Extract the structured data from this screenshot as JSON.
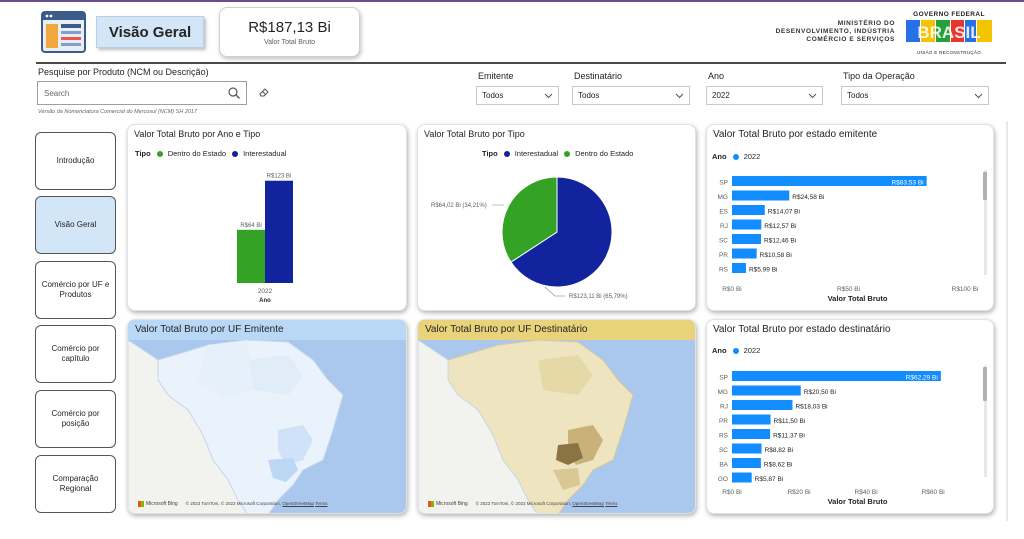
{
  "header": {
    "title": "Visão Geral",
    "kpi_value": "R$187,13 Bi",
    "kpi_label": "Valor Total Bruto",
    "ministry_line1": "MINISTÉRIO DO",
    "ministry_line2": "DESENVOLVIMENTO, INDÚSTRIA",
    "ministry_line3": "COMÉRCIO E SERVIÇOS",
    "gov_top": "GOVERNO FEDERAL",
    "gov_brand": "BRASIL",
    "gov_bottom": "UNIÃO E RECONSTRUÇÃO"
  },
  "search": {
    "label": "Pesquise por Produto (NCM ou Descrição)",
    "placeholder": "Search",
    "note": "Versão da Nomenclatura Comercial do Mercosul (NCM) SH 2017"
  },
  "filters": [
    {
      "label": "Emitente",
      "value": "Todos"
    },
    {
      "label": "Destinatário",
      "value": "Todos"
    },
    {
      "label": "Ano",
      "value": "2022"
    },
    {
      "label": "Tipo da Operação",
      "value": "Todos"
    }
  ],
  "nav": [
    {
      "label": "Introdução",
      "active": false
    },
    {
      "label": "Visão Geral",
      "active": true
    },
    {
      "label": "Comércio por UF e Produtos",
      "active": false
    },
    {
      "label": "Comércio por capítulo",
      "active": false
    },
    {
      "label": "Comércio por posição",
      "active": false
    },
    {
      "label": "Comparação Regional",
      "active": false
    }
  ],
  "colors": {
    "green": "#34a224",
    "navy": "#12239e",
    "blue": "#118dff",
    "nav_active": "#d3e6f7",
    "map_emit_header": "#b8d8f5",
    "map_dest_header": "#e8d27a"
  },
  "cards": {
    "bar": {
      "title": "Valor Total Bruto por Ano e Tipo",
      "legend_title": "Tipo",
      "legend": [
        "Dentro do Estado",
        "Interestadual"
      ]
    },
    "pie": {
      "title": "Valor Total Bruto por Tipo",
      "legend_title": "Tipo",
      "legend": [
        "Interestadual",
        "Dentro do Estado"
      ]
    },
    "emit_states": {
      "title": "Valor Total Bruto por estado emitente",
      "legend_title": "Ano",
      "legend_value": "2022",
      "axis_title": "Valor Total Bruto"
    },
    "dest_states": {
      "title": "Valor Total Bruto por estado destinatário",
      "legend_title": "Ano",
      "legend_value": "2022",
      "axis_title": "Valor Total Bruto"
    },
    "map_emit": {
      "title": "Valor Total Bruto por UF Emitente"
    },
    "map_dest": {
      "title": "Valor Total Bruto por UF Destinatário"
    },
    "map_footer": {
      "brand": "Microsoft Bing",
      "credits": "© 2023 TomTom, © 2023 Microsoft Corporation,",
      "terms_a": "OpenStreetMap",
      "terms_b": "Terms"
    }
  },
  "chart_data": [
    {
      "type": "bar",
      "title": "Valor Total Bruto por Ano e Tipo",
      "categories": [
        "2022"
      ],
      "xlabel": "Ano",
      "series": [
        {
          "name": "Dentro do Estado",
          "values": [
            64.02
          ],
          "label": "R$64 Bi"
        },
        {
          "name": "Interestadual",
          "values": [
            123.11
          ],
          "label": "R$123 Bi"
        }
      ],
      "ylim": [
        0,
        130
      ]
    },
    {
      "type": "pie",
      "title": "Valor Total Bruto por Tipo",
      "slices": [
        {
          "name": "Interestadual",
          "value": 123.11,
          "label": "R$123,11 Bi (65,79%)"
        },
        {
          "name": "Dentro do Estado",
          "value": 64.02,
          "label": "R$64,02 Bi (34,21%)"
        }
      ]
    },
    {
      "type": "bar",
      "orientation": "horizontal",
      "title": "Valor Total Bruto por estado emitente",
      "categories": [
        "SP",
        "MG",
        "ES",
        "RJ",
        "SC",
        "PR",
        "RS"
      ],
      "values": [
        83.53,
        24.58,
        14.07,
        12.57,
        12.46,
        10.58,
        5.99
      ],
      "labels": [
        "R$83,53 Bi",
        "R$24,58 Bi",
        "R$14,07 Bi",
        "R$12,57 Bi",
        "R$12,46 Bi",
        "R$10,58 Bi",
        "R$5,99 Bi"
      ],
      "xticks": [
        "R$0 Bi",
        "R$50 Bi",
        "R$100 Bi"
      ],
      "xtick_values": [
        0,
        50,
        100
      ],
      "xlim": [
        0,
        100
      ],
      "xlabel": "Valor Total Bruto"
    },
    {
      "type": "bar",
      "orientation": "horizontal",
      "title": "Valor Total Bruto por estado destinatário",
      "categories": [
        "SP",
        "MG",
        "RJ",
        "PR",
        "RS",
        "SC",
        "BA",
        "GO"
      ],
      "values": [
        62.29,
        20.5,
        18.03,
        11.5,
        11.37,
        8.82,
        8.62,
        5.87
      ],
      "labels": [
        "R$62,29 Bi",
        "R$20,50 Bi",
        "R$18,03 Bi",
        "R$11,50 Bi",
        "R$11,37 Bi",
        "R$8,82 Bi",
        "R$8,62 Bi",
        "R$5,87 Bi"
      ],
      "xticks": [
        "R$0 Bi",
        "R$20 Bi",
        "R$40 Bi",
        "R$60 Bi"
      ],
      "xtick_values": [
        0,
        20,
        40,
        60
      ],
      "xlim": [
        0,
        68
      ],
      "xlabel": "Valor Total Bruto"
    }
  ]
}
